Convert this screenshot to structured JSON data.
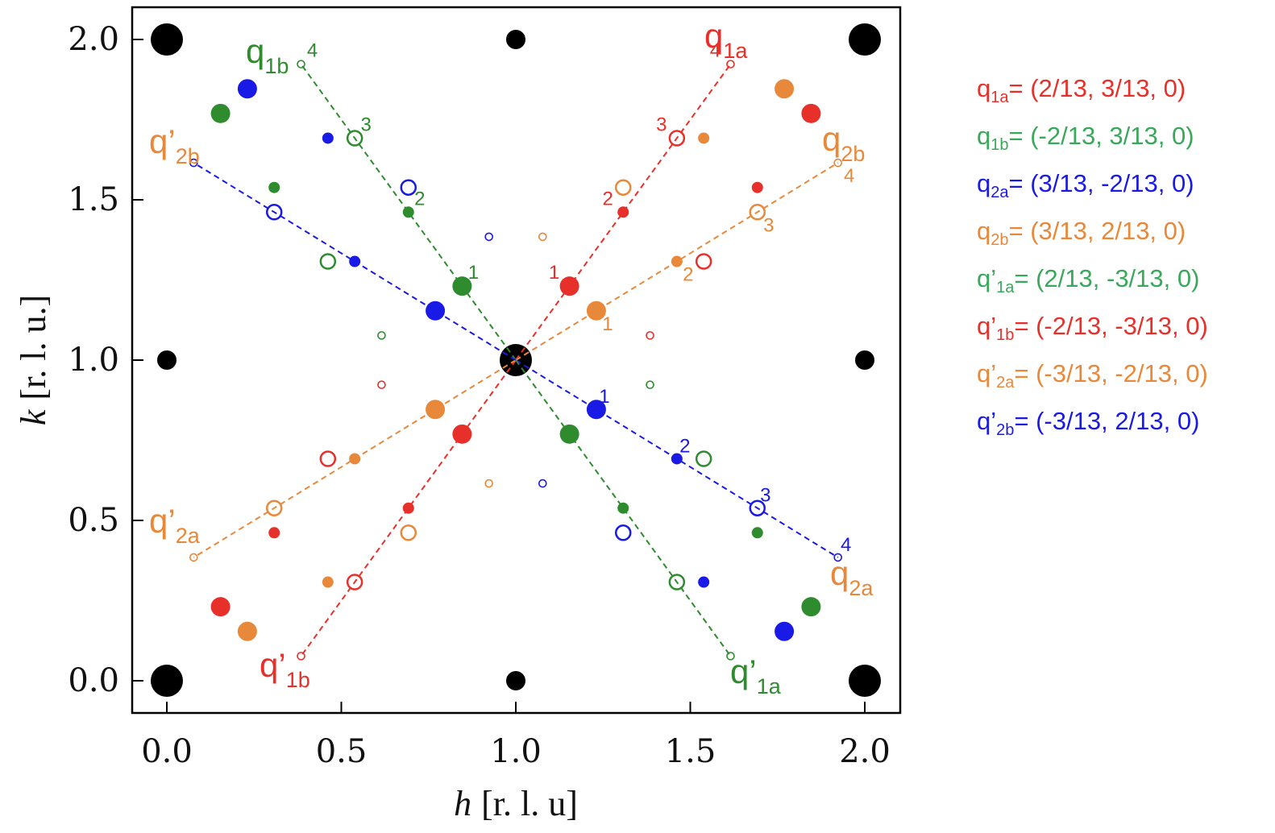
{
  "chart_data": {
    "type": "scatter",
    "xlabel_var": "h",
    "xlabel_unit": "[r. l. u]",
    "ylabel_var": "k",
    "ylabel_unit": "[r. l. u.]",
    "xlim": [
      -0.1,
      2.1
    ],
    "ylim": [
      -0.1,
      2.1
    ],
    "xticks": [
      "0.0",
      "0.5",
      "1.0",
      "1.5",
      "2.0"
    ],
    "yticks": [
      "0.0",
      "0.5",
      "1.0",
      "1.5",
      "2.0"
    ],
    "colors": {
      "red": "#e8302a",
      "green": "#2e8b2e",
      "blue": "#1a1ae6",
      "orange": "#e8883a",
      "black": "#000000"
    },
    "bragg_peaks": [
      {
        "h": 0,
        "k": 2,
        "size": "large"
      },
      {
        "h": 2,
        "k": 2,
        "size": "large"
      },
      {
        "h": 0,
        "k": 0,
        "size": "large"
      },
      {
        "h": 2,
        "k": 0,
        "size": "large"
      },
      {
        "h": 1,
        "k": 1,
        "size": "large"
      },
      {
        "h": 1,
        "k": 2,
        "size": "small"
      },
      {
        "h": 0,
        "k": 1,
        "size": "small"
      },
      {
        "h": 2,
        "k": 1,
        "size": "small"
      },
      {
        "h": 1,
        "k": 0,
        "size": "small"
      }
    ],
    "directions": [
      {
        "id": "q1a",
        "color": "red",
        "dh": 2,
        "dk": 3,
        "base": "q",
        "sub": "1a"
      },
      {
        "id": "q1b",
        "color": "green",
        "dh": -2,
        "dk": 3,
        "base": "q",
        "sub": "1b"
      },
      {
        "id": "q2a",
        "color": "blue",
        "dh": 3,
        "dk": -2,
        "base": "q",
        "sub": "2a"
      },
      {
        "id": "q2b",
        "color": "orange",
        "dh": 3,
        "dk": 2,
        "base": "q",
        "sub": "2b"
      },
      {
        "id": "qp1a",
        "color": "green",
        "dh": 2,
        "dk": -3,
        "base": "q’",
        "sub": "1a"
      },
      {
        "id": "qp1b",
        "color": "red",
        "dh": -2,
        "dk": -3,
        "base": "q’",
        "sub": "1b"
      },
      {
        "id": "qp2a",
        "color": "orange",
        "dh": -3,
        "dk": -2,
        "base": "q’",
        "sub": "2a"
      },
      {
        "id": "qp2b",
        "color": "blue",
        "dh": -3,
        "dk": 2,
        "base": "q’",
        "sub": "2b"
      }
    ],
    "harmonic_labels": [
      "1",
      "2",
      "3",
      "4"
    ],
    "vector_labels": [
      {
        "base": "q",
        "sub": "1a",
        "color": "red"
      },
      {
        "base": "q",
        "sub": "1b",
        "color": "green"
      },
      {
        "base": "q",
        "sub": "2a",
        "color": "orange"
      },
      {
        "base": "q",
        "sub": "2b",
        "color": "orange"
      },
      {
        "base": "q’",
        "sub": "1a",
        "color": "green"
      },
      {
        "base": "q’",
        "sub": "1b",
        "color": "red"
      },
      {
        "base": "q’",
        "sub": "2a",
        "color": "orange"
      },
      {
        "base": "q’",
        "sub": "2b",
        "color": "orange"
      }
    ]
  },
  "legend": [
    {
      "base": "q",
      "sub": "1a",
      "value": "= (2/13, 3/13, 0)",
      "color": "#e8302a"
    },
    {
      "base": "q",
      "sub": "1b",
      "value": "= (-2/13, 3/13, 0)",
      "color": "#3aa85a"
    },
    {
      "base": "q",
      "sub": "2a",
      "value": "= (3/13, -2/13, 0)",
      "color": "#1a1ae6"
    },
    {
      "base": "q",
      "sub": "2b",
      "value": "= (3/13, 2/13, 0)",
      "color": "#e8883a"
    },
    {
      "base": "q’",
      "sub": "1a",
      "value": "= (2/13, -3/13, 0)",
      "color": "#3aa85a"
    },
    {
      "base": "q’",
      "sub": "1b",
      "value": "= (-2/13, -3/13, 0)",
      "color": "#e8302a"
    },
    {
      "base": "q’",
      "sub": "2a",
      "value": "= (-3/13, -2/13, 0)",
      "color": "#e8883a"
    },
    {
      "base": "q’",
      "sub": "2b",
      "value": "= (-3/13, 2/13, 0)",
      "color": "#1a1ae6"
    }
  ]
}
